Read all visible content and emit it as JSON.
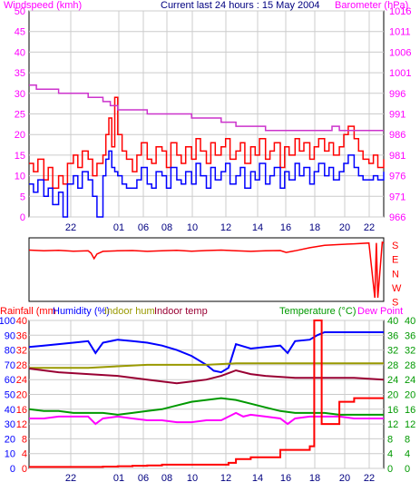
{
  "header": {
    "left_label": "Windspeed (kmh)",
    "center_label": "Current last 24 hours : 15 May 2004",
    "right_label": "Barometer (hPa)"
  },
  "bottom_header": {
    "rainfall_label": "Rainfall (mm",
    "humidity_label": "Humidity (%)",
    "indoor_hum_label": "Indoor hum",
    "indoor_temp_label": "Indoor temp",
    "temperature_label": "Temperature (°C)",
    "dew_point_label": "Dew Point"
  },
  "colors": {
    "wind_gust": "#ff0000",
    "wind_avg": "#0000ff",
    "barometer": "#cc33cc",
    "wind_dir": "#ff0000",
    "humidity": "#0000ff",
    "indoor_hum": "#999900",
    "indoor_temp": "#990033",
    "temperature": "#009900",
    "dew_point": "#ff00ff",
    "rainfall": "#ff0000",
    "grid": "#cccccc"
  },
  "chart_data": [
    {
      "type": "line",
      "name": "wind-barometer",
      "x_tick_labels": [
        "22",
        "01",
        "06",
        "08",
        "10",
        "12",
        "14",
        "16",
        "18",
        "20",
        "22"
      ],
      "xlabel": "",
      "left_axis": {
        "title": "Windspeed (kmh)",
        "ylim": [
          0,
          50
        ],
        "ticks": [
          0,
          5,
          10,
          15,
          20,
          25,
          30,
          35,
          40,
          45,
          50
        ]
      },
      "right_axis": {
        "title": "Barometer (hPa)",
        "ylim": [
          966,
          1016
        ],
        "ticks": [
          966,
          971,
          976,
          981,
          986,
          991,
          996,
          1001,
          1006,
          1011,
          1016
        ]
      },
      "series": [
        {
          "name": "Gust",
          "axis": "left",
          "x": [
            0,
            0.3,
            0.6,
            1,
            1.3,
            1.6,
            2,
            2.3,
            2.6,
            3,
            3.3,
            3.6,
            4,
            4.3,
            4.6,
            5,
            5.2,
            5.4,
            5.6,
            5.8,
            6,
            6.3,
            6.6,
            7,
            7.3,
            7.6,
            8,
            8.3,
            8.6,
            9,
            9.3,
            9.6,
            10,
            10.3,
            10.6,
            11,
            11.3,
            11.6,
            12,
            12.3,
            12.6,
            13,
            13.3,
            13.6,
            14,
            14.3,
            14.6,
            15,
            15.3,
            15.6,
            16,
            16.3,
            16.6,
            17,
            17.3,
            17.6,
            18,
            18.3,
            18.6,
            19,
            19.3,
            19.6,
            20,
            20.3,
            20.6,
            21,
            21.3,
            21.6,
            22,
            22.3,
            22.6,
            23,
            23.3,
            23.6,
            24
          ],
          "values": [
            13,
            11,
            14,
            9,
            12,
            7,
            10,
            8,
            13,
            15,
            12,
            16,
            14,
            10,
            13,
            15,
            20,
            24,
            17,
            29,
            20,
            16,
            14,
            11,
            15,
            18,
            14,
            13,
            17,
            16,
            12,
            18,
            15,
            13,
            17,
            14,
            19,
            16,
            13,
            18,
            15,
            17,
            19,
            14,
            16,
            18,
            13,
            17,
            15,
            19,
            14,
            16,
            18,
            12,
            17,
            15,
            19,
            16,
            18,
            14,
            17,
            19,
            16,
            18,
            15,
            17,
            20,
            22,
            19,
            16,
            14,
            13,
            15,
            12,
            14
          ]
        },
        {
          "name": "Average",
          "axis": "left",
          "x": [
            0,
            0.3,
            0.6,
            1,
            1.3,
            1.6,
            2,
            2.3,
            2.6,
            3,
            3.3,
            3.6,
            4,
            4.3,
            4.6,
            5,
            5.2,
            5.4,
            5.6,
            5.8,
            6,
            6.3,
            6.6,
            7,
            7.3,
            7.6,
            8,
            8.3,
            8.6,
            9,
            9.3,
            9.6,
            10,
            10.3,
            10.6,
            11,
            11.3,
            11.6,
            12,
            12.3,
            12.6,
            13,
            13.3,
            13.6,
            14,
            14.3,
            14.6,
            15,
            15.3,
            15.6,
            16,
            16.3,
            16.6,
            17,
            17.3,
            17.6,
            18,
            18.3,
            18.6,
            19,
            19.3,
            19.6,
            20,
            20.3,
            20.6,
            21,
            21.3,
            21.6,
            22,
            22.3,
            22.6,
            23,
            23.3,
            23.6,
            24
          ],
          "values": [
            8,
            6,
            9,
            5,
            7,
            3,
            6,
            0,
            8,
            10,
            7,
            11,
            9,
            5,
            0,
            10,
            14,
            16,
            12,
            11,
            10,
            8,
            7,
            7,
            9,
            12,
            8,
            7,
            11,
            10,
            7,
            12,
            9,
            8,
            11,
            8,
            13,
            10,
            7,
            12,
            9,
            11,
            13,
            8,
            10,
            12,
            7,
            11,
            9,
            13,
            8,
            10,
            12,
            7,
            11,
            9,
            13,
            10,
            12,
            8,
            11,
            13,
            10,
            12,
            9,
            11,
            13,
            15,
            12,
            10,
            9,
            9,
            10,
            9,
            11
          ]
        },
        {
          "name": "Barometer",
          "axis": "right",
          "x": [
            0,
            0.5,
            1,
            2,
            3,
            4,
            5,
            5.5,
            6,
            7,
            8,
            9,
            10,
            11,
            12,
            13,
            14,
            15,
            16,
            17,
            18,
            19,
            20,
            20.5,
            21,
            22,
            23,
            24
          ],
          "values": [
            998,
            997,
            997,
            996,
            996,
            995,
            994,
            993,
            992,
            992,
            991,
            991,
            991,
            990,
            990,
            989,
            988,
            988,
            987,
            987,
            987,
            987,
            987,
            988,
            987,
            987,
            987,
            987
          ]
        }
      ]
    },
    {
      "type": "line",
      "name": "wind-direction",
      "right_axis": {
        "tick_labels": [
          "S",
          "E",
          "N",
          "W",
          "S"
        ],
        "ylim": [
          0,
          360
        ]
      },
      "series": [
        {
          "name": "Direction",
          "x": [
            0,
            1,
            2,
            3,
            4,
            4.2,
            4.4,
            4.6,
            5,
            6,
            7,
            8,
            9,
            10,
            11,
            12,
            13,
            14,
            15,
            16,
            17,
            17.4,
            18,
            19,
            20,
            21,
            22,
            23,
            23.4,
            23.5,
            23.6,
            23.9,
            24
          ],
          "values": [
            305,
            300,
            303,
            298,
            300,
            285,
            250,
            280,
            297,
            300,
            302,
            297,
            300,
            303,
            298,
            302,
            305,
            300,
            297,
            300,
            302,
            290,
            300,
            320,
            335,
            340,
            345,
            350,
            0,
            350,
            0,
            355,
            350
          ]
        }
      ]
    },
    {
      "type": "line",
      "name": "temperature-humidity-rainfall",
      "x_tick_labels": [
        "22",
        "01",
        "06",
        "08",
        "10",
        "12",
        "14",
        "16",
        "18",
        "20",
        "22"
      ],
      "left_axis_1": {
        "ylim": [
          0,
          100
        ],
        "ticks": [
          0,
          10,
          20,
          30,
          40,
          50,
          60,
          70,
          80,
          90,
          100
        ]
      },
      "left_axis_2": {
        "ylim": [
          0,
          40
        ],
        "ticks": [
          0,
          4,
          8,
          12,
          16,
          20,
          24,
          28,
          32,
          36,
          40
        ]
      },
      "right_axis_1": {
        "ylim": [
          0,
          40
        ],
        "ticks": [
          0,
          4,
          8,
          12,
          16,
          20,
          24,
          28,
          32,
          36,
          40
        ]
      },
      "right_axis_2": {
        "ylim": [
          0,
          40
        ],
        "ticks": [
          0,
          4,
          8,
          12,
          16,
          20,
          24,
          28,
          32,
          36,
          40
        ]
      },
      "series": [
        {
          "name": "Humidity (%)",
          "axis": "pct",
          "x": [
            0,
            1,
            2,
            3,
            4,
            4.5,
            5,
            6,
            7,
            8,
            9,
            10,
            11,
            12,
            12.5,
            13,
            13.5,
            14,
            15,
            16,
            17,
            17.5,
            18,
            19,
            19.5,
            20,
            21,
            22,
            23,
            24
          ],
          "values": [
            82,
            83,
            84,
            85,
            86,
            78,
            85,
            87,
            86,
            85,
            83,
            80,
            76,
            70,
            66,
            65,
            68,
            84,
            81,
            82,
            83,
            78,
            86,
            87,
            90,
            92,
            92,
            92,
            92,
            92
          ]
        },
        {
          "name": "Indoor hum",
          "axis": "pct",
          "x": [
            0,
            2,
            4,
            6,
            8,
            10,
            12,
            14,
            16,
            18,
            20,
            22,
            24
          ],
          "values": [
            68,
            68,
            68,
            69,
            70,
            70,
            70,
            71,
            71,
            71,
            71,
            71,
            71
          ]
        },
        {
          "name": "Indoor temp",
          "axis": "temp",
          "x": [
            0,
            2,
            4,
            6,
            8,
            10,
            11,
            12,
            13,
            14,
            15,
            16,
            18,
            20,
            22,
            24
          ],
          "values": [
            27,
            26,
            25.5,
            25,
            24,
            23,
            23.5,
            24,
            25,
            26.5,
            25.5,
            25,
            24.5,
            24.5,
            24.5,
            24
          ]
        },
        {
          "name": "Temperature",
          "axis": "temp",
          "x": [
            0,
            1,
            2,
            3,
            4,
            5,
            6,
            7,
            8,
            9,
            10,
            11,
            12,
            13,
            14,
            15,
            16,
            17,
            18,
            19,
            20,
            21,
            22,
            23,
            24
          ],
          "values": [
            16,
            15.5,
            15.5,
            15,
            15,
            15,
            14.5,
            15,
            15.5,
            16,
            17,
            18,
            18.5,
            19,
            18.5,
            17.5,
            16.5,
            15.5,
            15,
            15,
            15,
            14.5,
            14.5,
            14.5,
            14.5
          ]
        },
        {
          "name": "Dew Point",
          "axis": "temp",
          "x": [
            0,
            1,
            2,
            3,
            4,
            4.5,
            5,
            6,
            7,
            8,
            9,
            10,
            11,
            12,
            13,
            14,
            14.5,
            15,
            16,
            17,
            17.5,
            18,
            19,
            20,
            21,
            22,
            23,
            24
          ],
          "values": [
            13.5,
            13.5,
            14,
            14,
            14,
            12,
            13.5,
            14,
            13.5,
            13,
            13,
            12.5,
            12.5,
            13,
            13,
            15,
            14,
            14.5,
            14,
            13.5,
            12,
            13.5,
            14,
            14,
            14,
            13.5,
            13.5,
            13.5
          ]
        },
        {
          "name": "Rainfall",
          "axis": "temp",
          "x": [
            0,
            1,
            2,
            3,
            4,
            5,
            6,
            7,
            8,
            9,
            10,
            11,
            12,
            13,
            13.5,
            14,
            15,
            16,
            17,
            18,
            19,
            19.2,
            19.3,
            19.5,
            19.6,
            19.8,
            20,
            21,
            22,
            23,
            24
          ],
          "values": [
            0.4,
            0.4,
            0.4,
            0.4,
            0.4,
            0.5,
            0.6,
            0.7,
            0.8,
            1,
            1,
            1,
            1,
            1,
            1.5,
            2.5,
            3,
            3,
            5,
            5,
            6,
            6,
            40,
            40,
            40,
            12,
            12,
            18,
            19,
            19,
            19
          ]
        }
      ]
    }
  ]
}
